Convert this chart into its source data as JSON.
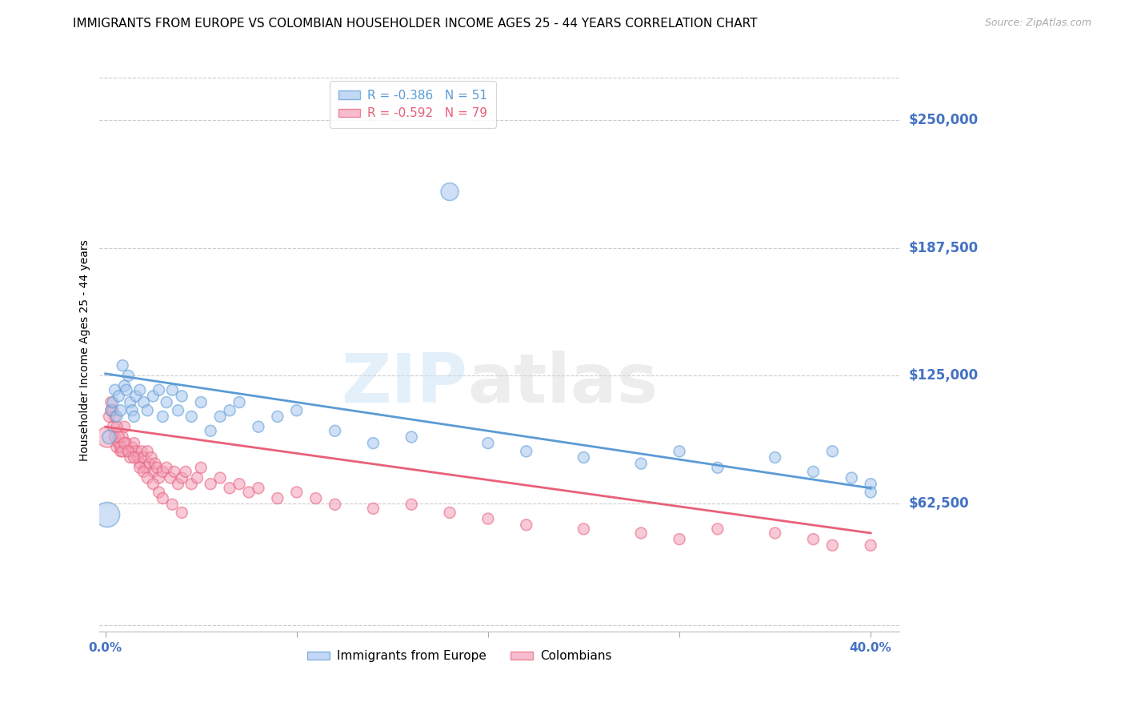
{
  "title": "IMMIGRANTS FROM EUROPE VS COLOMBIAN HOUSEHOLDER INCOME AGES 25 - 44 YEARS CORRELATION CHART",
  "source": "Source: ZipAtlas.com",
  "ylabel": "Householder Income Ages 25 - 44 years",
  "ytick_labels": [
    "$62,500",
    "$125,000",
    "$187,500",
    "$250,000"
  ],
  "ytick_values": [
    62500,
    125000,
    187500,
    250000
  ],
  "ymin": 0,
  "ymax": 275000,
  "xmin": -0.003,
  "xmax": 0.415,
  "watermark_zip": "ZIP",
  "watermark_atlas": "atlas",
  "blue_color": "#a8c8f0",
  "pink_color": "#f4a0b8",
  "blue_edge_color": "#5b9bd5",
  "pink_edge_color": "#e8607a",
  "blue_line_color": "#5b9bd5",
  "pink_line_color": "#e8607a",
  "legend_blue_R": "-0.386",
  "legend_blue_N": "51",
  "legend_pink_R": "-0.592",
  "legend_pink_N": "79",
  "blue_scatter_x": [
    0.001,
    0.002,
    0.003,
    0.004,
    0.005,
    0.006,
    0.007,
    0.008,
    0.009,
    0.01,
    0.011,
    0.012,
    0.013,
    0.014,
    0.015,
    0.016,
    0.018,
    0.02,
    0.022,
    0.025,
    0.028,
    0.03,
    0.032,
    0.035,
    0.038,
    0.04,
    0.045,
    0.05,
    0.055,
    0.06,
    0.065,
    0.07,
    0.08,
    0.09,
    0.1,
    0.12,
    0.14,
    0.16,
    0.18,
    0.2,
    0.22,
    0.25,
    0.28,
    0.3,
    0.32,
    0.35,
    0.37,
    0.38,
    0.39,
    0.4,
    0.4
  ],
  "blue_scatter_y": [
    57000,
    95000,
    108000,
    112000,
    118000,
    105000,
    115000,
    108000,
    130000,
    120000,
    118000,
    125000,
    112000,
    108000,
    105000,
    115000,
    118000,
    112000,
    108000,
    115000,
    118000,
    105000,
    112000,
    118000,
    108000,
    115000,
    105000,
    112000,
    98000,
    105000,
    108000,
    112000,
    100000,
    105000,
    108000,
    98000,
    92000,
    95000,
    215000,
    92000,
    88000,
    85000,
    82000,
    88000,
    80000,
    85000,
    78000,
    88000,
    75000,
    72000,
    68000
  ],
  "blue_scatter_size": [
    500,
    150,
    100,
    100,
    100,
    100,
    100,
    100,
    100,
    100,
    100,
    100,
    100,
    100,
    100,
    100,
    100,
    100,
    100,
    100,
    100,
    100,
    100,
    100,
    100,
    100,
    100,
    100,
    100,
    100,
    100,
    100,
    100,
    100,
    100,
    100,
    100,
    100,
    250,
    100,
    100,
    100,
    100,
    100,
    100,
    100,
    100,
    100,
    100,
    100,
    100
  ],
  "pink_scatter_x": [
    0.001,
    0.002,
    0.003,
    0.004,
    0.005,
    0.006,
    0.007,
    0.008,
    0.009,
    0.01,
    0.011,
    0.012,
    0.013,
    0.014,
    0.015,
    0.016,
    0.017,
    0.018,
    0.019,
    0.02,
    0.021,
    0.022,
    0.023,
    0.024,
    0.025,
    0.026,
    0.027,
    0.028,
    0.03,
    0.032,
    0.034,
    0.036,
    0.038,
    0.04,
    0.042,
    0.045,
    0.048,
    0.05,
    0.055,
    0.06,
    0.065,
    0.07,
    0.075,
    0.08,
    0.09,
    0.1,
    0.11,
    0.12,
    0.14,
    0.16,
    0.18,
    0.2,
    0.22,
    0.25,
    0.28,
    0.3,
    0.32,
    0.35,
    0.37,
    0.38,
    0.4,
    0.003,
    0.004,
    0.005,
    0.006,
    0.007,
    0.008,
    0.009,
    0.01,
    0.012,
    0.015,
    0.018,
    0.02,
    0.022,
    0.025,
    0.028,
    0.03,
    0.035,
    0.04
  ],
  "pink_scatter_y": [
    95000,
    105000,
    108000,
    100000,
    95000,
    90000,
    92000,
    88000,
    95000,
    100000,
    92000,
    88000,
    85000,
    90000,
    92000,
    88000,
    85000,
    82000,
    88000,
    85000,
    80000,
    88000,
    82000,
    85000,
    78000,
    82000,
    80000,
    75000,
    78000,
    80000,
    75000,
    78000,
    72000,
    75000,
    78000,
    72000,
    75000,
    80000,
    72000,
    75000,
    70000,
    72000,
    68000,
    70000,
    65000,
    68000,
    65000,
    62000,
    60000,
    62000,
    58000,
    55000,
    52000,
    50000,
    48000,
    45000,
    50000,
    48000,
    45000,
    42000,
    42000,
    112000,
    108000,
    105000,
    100000,
    95000,
    90000,
    88000,
    92000,
    88000,
    85000,
    80000,
    78000,
    75000,
    72000,
    68000,
    65000,
    62000,
    58000
  ],
  "pink_scatter_size": [
    350,
    100,
    100,
    100,
    100,
    100,
    100,
    100,
    100,
    100,
    100,
    100,
    100,
    100,
    100,
    100,
    100,
    100,
    100,
    100,
    100,
    100,
    100,
    100,
    100,
    100,
    100,
    100,
    100,
    100,
    100,
    100,
    100,
    100,
    100,
    100,
    100,
    100,
    100,
    100,
    100,
    100,
    100,
    100,
    100,
    100,
    100,
    100,
    100,
    100,
    100,
    100,
    100,
    100,
    100,
    100,
    100,
    100,
    100,
    100,
    100,
    100,
    100,
    100,
    100,
    100,
    100,
    100,
    100,
    100,
    100,
    100,
    100,
    100,
    100,
    100,
    100,
    100,
    100
  ],
  "blue_trend_x": [
    0.0,
    0.4
  ],
  "blue_trend_y": [
    126000,
    70000
  ],
  "pink_trend_x": [
    0.0,
    0.4
  ],
  "pink_trend_y": [
    100000,
    48000
  ],
  "title_fontsize": 11,
  "source_fontsize": 9,
  "ylabel_fontsize": 10,
  "ytick_color": "#4472c4",
  "xtick_color": "#4472c4"
}
